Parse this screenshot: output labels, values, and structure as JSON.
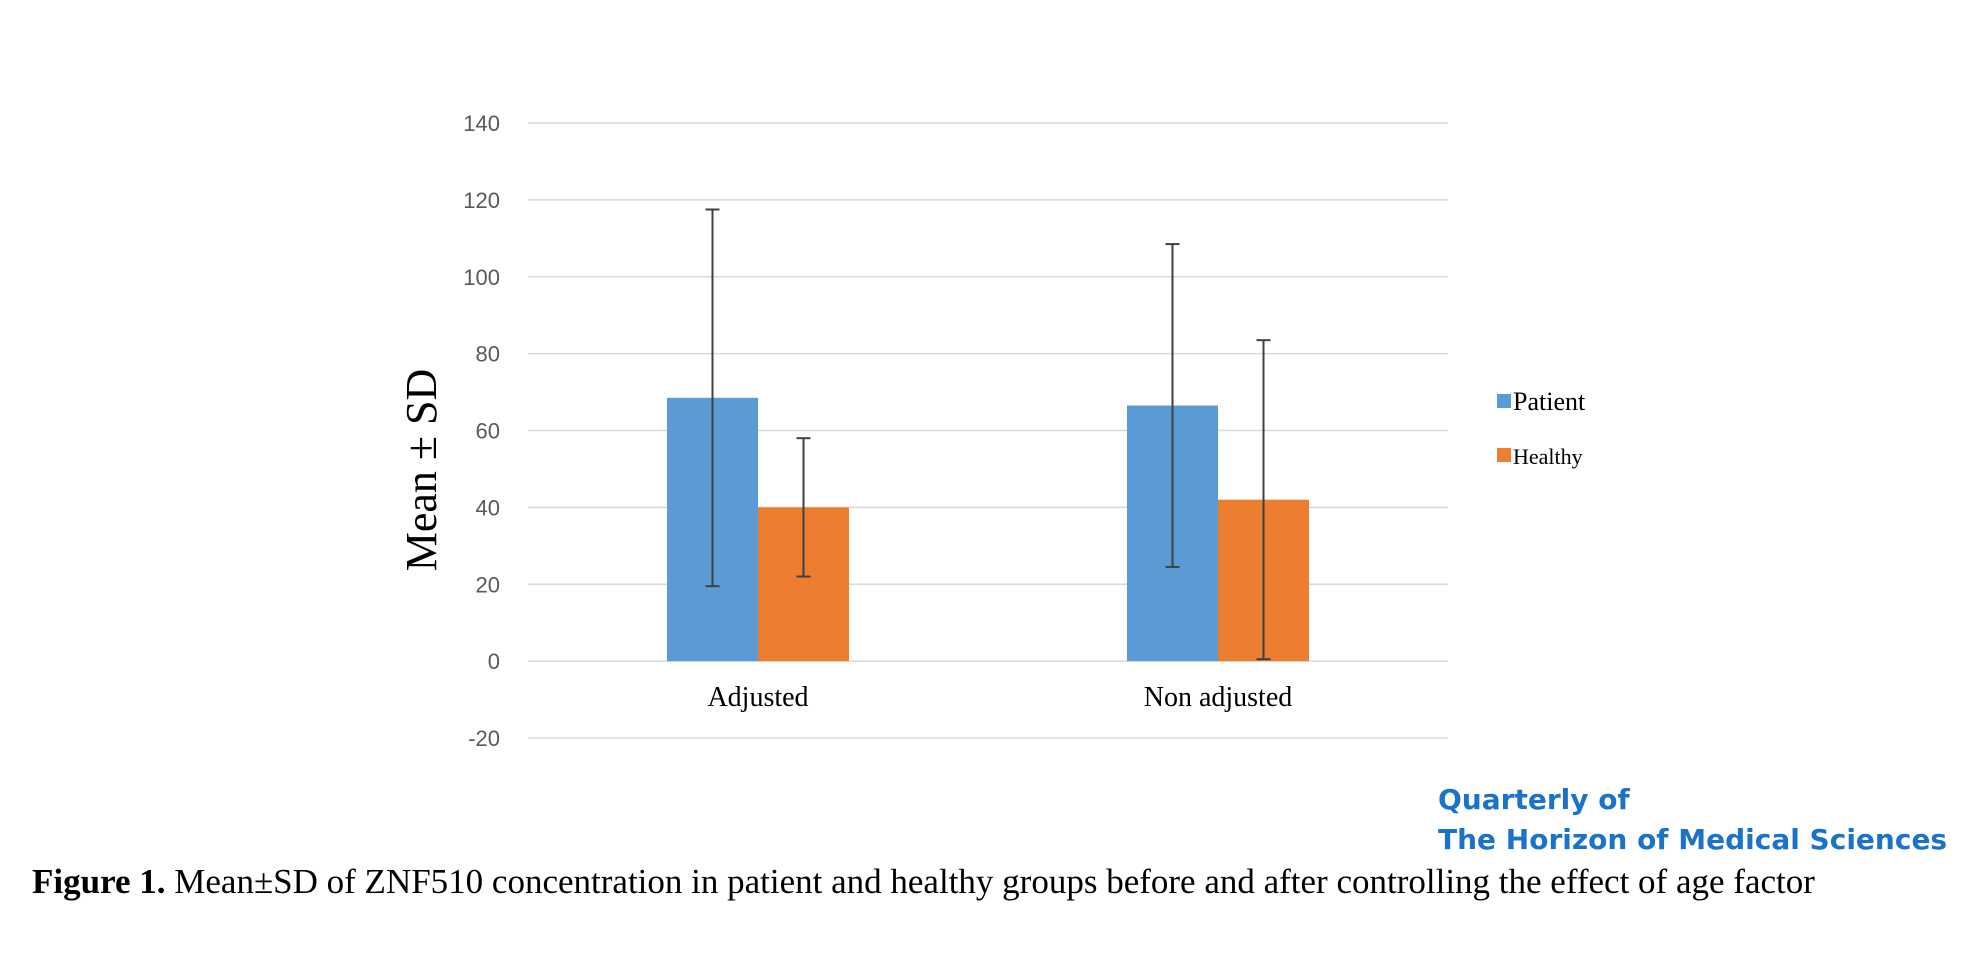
{
  "chart_data": {
    "type": "bar",
    "categories": [
      "Adjusted",
      "Non adjusted"
    ],
    "series": [
      {
        "name": "Patient",
        "values": [
          68.5,
          66.5
        ],
        "sd": [
          49,
          42
        ],
        "color": "#5b9bd5"
      },
      {
        "name": "Healthy",
        "values": [
          40,
          42
        ],
        "sd": [
          18,
          41.5
        ],
        "color": "#ed7d31"
      }
    ],
    "ylabel": "Mean ± SD",
    "xlabel": "",
    "ylim": [
      -20,
      140
    ],
    "yticks": [
      -20,
      0,
      20,
      40,
      60,
      80,
      100,
      120,
      140
    ],
    "grid": true,
    "legend_position": "right"
  },
  "watermark": {
    "line1": "Quarterly of",
    "line2": "The Horizon of Medical Sciences"
  },
  "caption": {
    "label": "Figure 1.",
    "text": " Mean±SD of ZNF510 concentration in patient and healthy groups before and after controlling the effect of age factor"
  }
}
